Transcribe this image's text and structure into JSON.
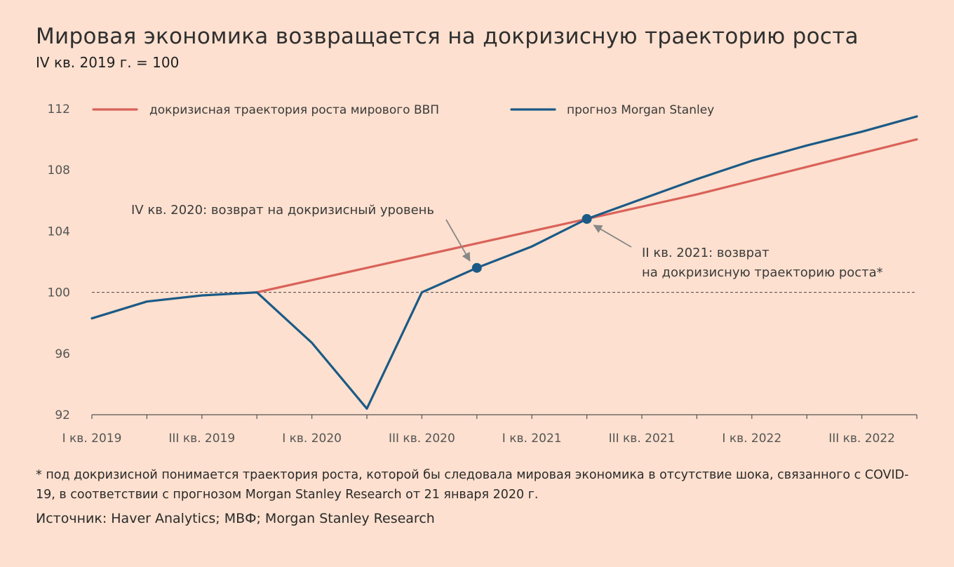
{
  "header": {
    "title": "Мировая экономика возвращается на докризисную траекторию роста",
    "subtitle": "IV кв. 2019 г. = 100"
  },
  "colors": {
    "background": "#fde0cf",
    "trend": "#d9625a",
    "forecast": "#1b5a86",
    "axis": "#555555",
    "annotation_arrow": "#888888"
  },
  "chart_data": {
    "type": "line",
    "title": "Мировая экономика возвращается на докризисную траекторию роста",
    "subtitle": "IV кв. 2019 г. = 100",
    "xlabel": "",
    "ylabel": "",
    "x": [
      "I кв. 2019",
      "II кв. 2019",
      "III кв. 2019",
      "IV кв. 2019",
      "I кв. 2020",
      "II кв. 2020",
      "III кв. 2020",
      "IV кв. 2020",
      "I кв. 2021",
      "II кв. 2021",
      "III кв. 2021",
      "IV кв. 2021",
      "I кв. 2022",
      "II кв. 2022",
      "III кв. 2022",
      "IV кв. 2022"
    ],
    "x_tick_labels": [
      "I кв. 2019",
      "",
      "III кв. 2019",
      "",
      "I кв. 2020",
      "",
      "III кв. 2020",
      "",
      "I кв. 2021",
      "",
      "III кв. 2021",
      "",
      "I кв. 2022",
      "",
      "III кв. 2022",
      ""
    ],
    "ylim": [
      92,
      112
    ],
    "yticks": [
      92,
      96,
      100,
      104,
      108,
      112
    ],
    "reference_line": 100,
    "legend_position": "top",
    "grid": false,
    "series": [
      {
        "name": "докризисная траектория роста мирового ВВП",
        "color": "#d9625a",
        "values": [
          null,
          null,
          null,
          100,
          100.8,
          101.6,
          102.4,
          103.2,
          104.0,
          104.8,
          105.6,
          106.4,
          107.3,
          108.2,
          109.1,
          110.0
        ]
      },
      {
        "name": "прогноз Morgan Stanley",
        "color": "#1b5a86",
        "values": [
          98.3,
          99.4,
          99.8,
          100,
          96.7,
          92.4,
          100,
          101.6,
          103.0,
          104.8,
          106.1,
          107.4,
          108.6,
          109.6,
          110.5,
          111.5
        ]
      }
    ],
    "highlight_points": [
      {
        "series": 1,
        "index": 7
      },
      {
        "series": 1,
        "index": 9
      }
    ],
    "annotations": [
      {
        "id": "a1",
        "lines": [
          "IV кв. 2020: возврат на докризисный уровень"
        ],
        "target_index": 7
      },
      {
        "id": "a2",
        "lines": [
          "II кв. 2021: возврат",
          "на докризисную траекторию роста*"
        ],
        "target_index": 9
      }
    ]
  },
  "footer": {
    "footnote": "* под докризисной понимается траектория роста, которой бы следовала мировая экономика в отсутствие шока, связанного с COVID-19, в соответствии с прогнозом Morgan Stanley Research от 21 января 2020 г.",
    "source": "Источник: Haver Analytics; МВФ; Morgan Stanley Research"
  }
}
